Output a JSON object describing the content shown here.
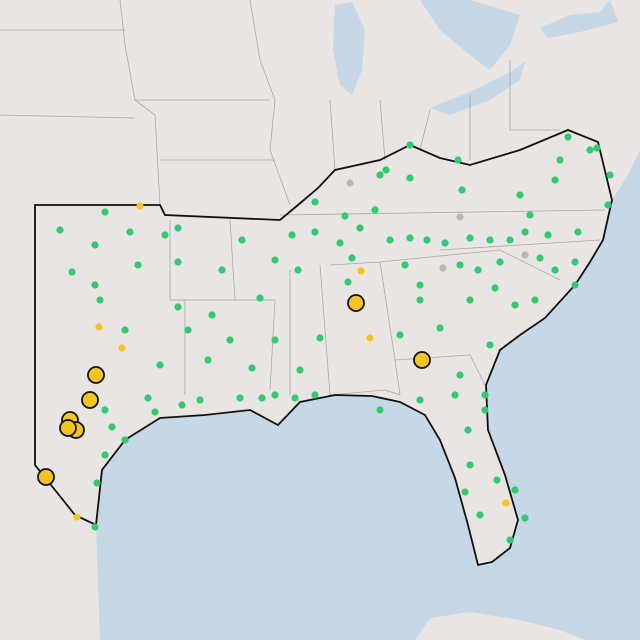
{
  "map": {
    "marker_colors": {
      "active": "#2ecc71",
      "alert": "#f5c518",
      "inactive": "#b8b8b8"
    }
  }
}
